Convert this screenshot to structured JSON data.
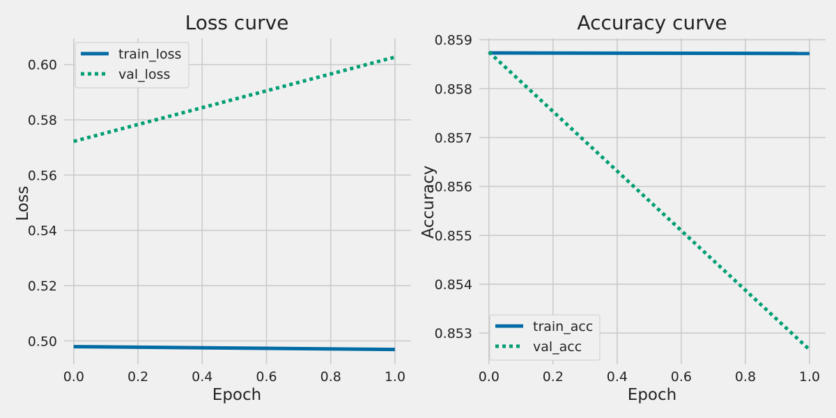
{
  "chart_data": [
    {
      "type": "line",
      "title": "Loss curve",
      "xlabel": "Epoch",
      "ylabel": "Loss",
      "x": [
        0.0,
        1.0
      ],
      "xlim": [
        -0.03,
        1.05
      ],
      "ylim": [
        0.4915,
        0.6095
      ],
      "xticks": [
        0.0,
        0.2,
        0.4,
        0.6,
        0.8,
        1.0
      ],
      "xtick_labels": [
        "0.0",
        "0.2",
        "0.4",
        "0.6",
        "0.8",
        "1.0"
      ],
      "yticks": [
        0.5,
        0.52,
        0.54,
        0.56,
        0.58,
        0.6
      ],
      "ytick_labels": [
        "0.50",
        "0.52",
        "0.54",
        "0.56",
        "0.58",
        "0.60"
      ],
      "grid": true,
      "legend_position": "top-left",
      "series": [
        {
          "name": "train_loss",
          "values": [
            0.4979,
            0.4969
          ],
          "color": "#006ba4",
          "style": "solid"
        },
        {
          "name": "val_loss",
          "values": [
            0.5722,
            0.6027
          ],
          "color": "#009e73",
          "style": "dotted"
        }
      ]
    },
    {
      "type": "line",
      "title": "Accuracy curve",
      "xlabel": "Epoch",
      "ylabel": "Accuracy",
      "x": [
        0.0,
        1.0
      ],
      "xlim": [
        -0.03,
        1.05
      ],
      "ylim": [
        0.85236,
        0.85903
      ],
      "xticks": [
        0.0,
        0.2,
        0.4,
        0.6,
        0.8,
        1.0
      ],
      "xtick_labels": [
        "0.0",
        "0.2",
        "0.4",
        "0.6",
        "0.8",
        "1.0"
      ],
      "yticks": [
        0.853,
        0.854,
        0.855,
        0.856,
        0.857,
        0.858,
        0.859
      ],
      "ytick_labels": [
        "0.853",
        "0.854",
        "0.855",
        "0.856",
        "0.857",
        "0.858",
        "0.859"
      ],
      "grid": true,
      "legend_position": "bottom-left",
      "series": [
        {
          "name": "train_acc",
          "values": [
            0.85873,
            0.85872
          ],
          "color": "#006ba4",
          "style": "solid"
        },
        {
          "name": "val_acc",
          "values": [
            0.85875,
            0.85266
          ],
          "color": "#009e73",
          "style": "dotted"
        }
      ]
    }
  ]
}
